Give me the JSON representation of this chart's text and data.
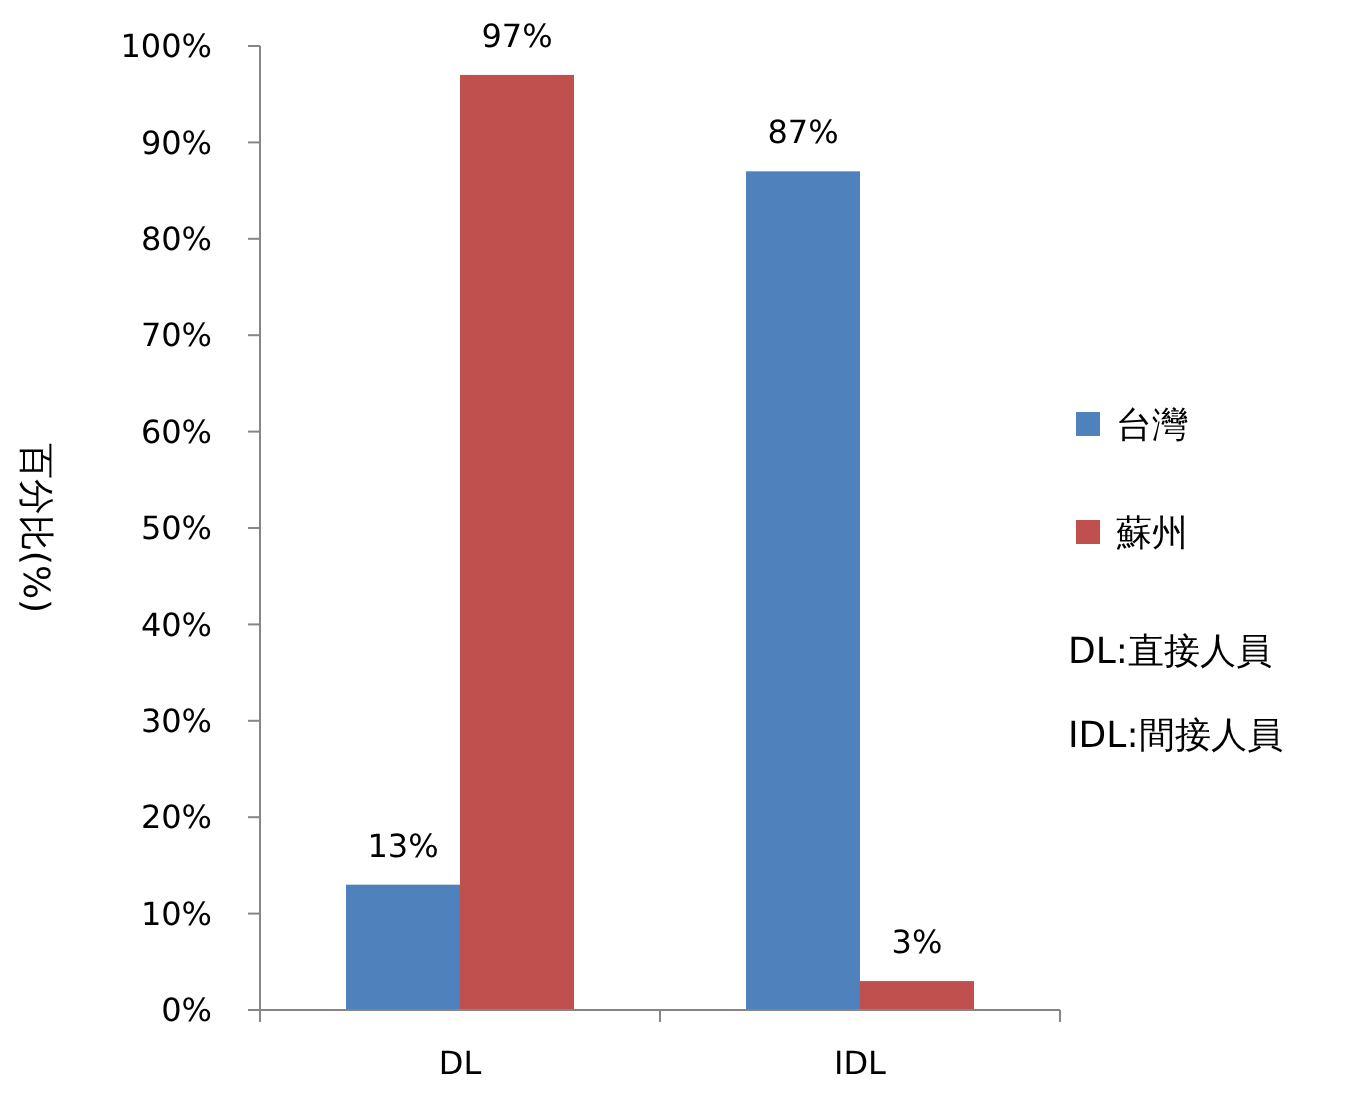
{
  "chart_data": {
    "type": "bar",
    "ylabel": "百分比(%)",
    "categories": [
      "DL",
      "IDL"
    ],
    "series": [
      {
        "name": "台灣",
        "color": "#4f81bd",
        "values": [
          13,
          87
        ],
        "value_labels": [
          "13%",
          "87%"
        ]
      },
      {
        "name": "蘇州",
        "color": "#c0504d",
        "values": [
          97,
          3
        ],
        "value_labels": [
          "97%",
          "3%"
        ]
      }
    ],
    "ylim": [
      0,
      100
    ],
    "yticks": [
      {
        "value": 0,
        "label": "0%"
      },
      {
        "value": 10,
        "label": "10%"
      },
      {
        "value": 20,
        "label": "20%"
      },
      {
        "value": 30,
        "label": "30%"
      },
      {
        "value": 40,
        "label": "40%"
      },
      {
        "value": 50,
        "label": "50%"
      },
      {
        "value": 60,
        "label": "60%"
      },
      {
        "value": 70,
        "label": "70%"
      },
      {
        "value": 80,
        "label": "80%"
      },
      {
        "value": 90,
        "label": "90%"
      },
      {
        "value": 100,
        "label": "100%"
      }
    ],
    "grid": false,
    "legend": "right",
    "annotations": [
      "DL:直接人員",
      "IDL:間接人員"
    ]
  }
}
